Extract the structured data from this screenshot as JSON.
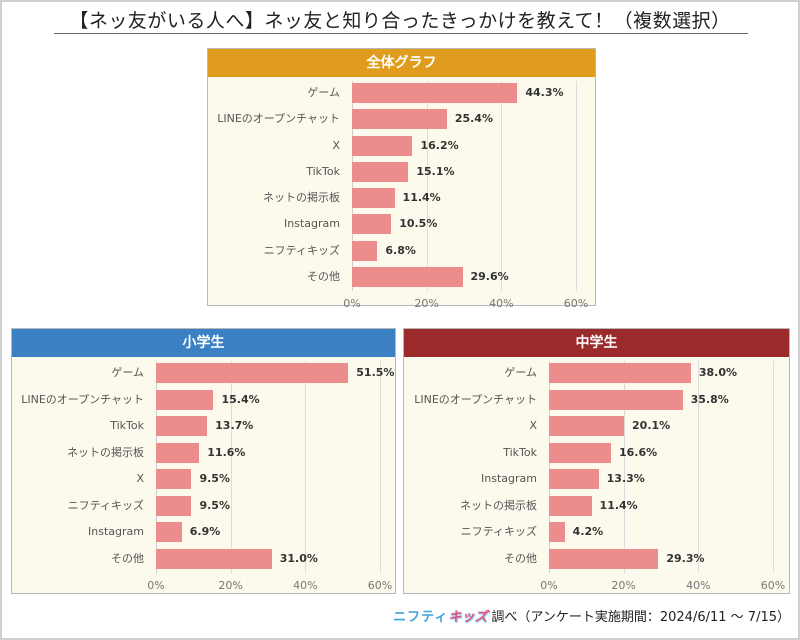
{
  "title": "【ネッ友がいる人へ】ネッ友と知り合ったきっかけを教えて！（複数選択）",
  "colors": {
    "overall_header": "#e09c1c",
    "elementary_header": "#3a80c3",
    "junior_header": "#9b2a2a",
    "bar": "#ec8c8c",
    "panel_bg": "#fcfaec"
  },
  "footer": {
    "logo_part1": "ニフティ",
    "logo_part2": "キッズ",
    "text": "調べ（アンケート実施期間：2024/6/11 ～ 7/15）"
  },
  "chart_data": [
    {
      "type": "bar",
      "orientation": "horizontal",
      "title": "全体グラフ",
      "categories": [
        "ゲーム",
        "LINEのオープンチャット",
        "X",
        "TikTok",
        "ネットの掲示板",
        "Instagram",
        "ニフティキッズ",
        "その他"
      ],
      "values": [
        44.3,
        25.4,
        16.2,
        15.1,
        11.4,
        10.5,
        6.8,
        29.6
      ],
      "value_labels": [
        "44.3%",
        "25.4%",
        "16.2%",
        "15.1%",
        "11.4%",
        "10.5%",
        "6.8%",
        "29.6%"
      ],
      "xlabel": "",
      "ylabel": "",
      "xlim": [
        0,
        60
      ],
      "xticks": [
        "0%",
        "20%",
        "40%",
        "60%"
      ],
      "grid": true
    },
    {
      "type": "bar",
      "orientation": "horizontal",
      "title": "小学生",
      "categories": [
        "ゲーム",
        "LINEのオープンチャット",
        "TikTok",
        "ネットの掲示板",
        "X",
        "ニフティキッズ",
        "Instagram",
        "その他"
      ],
      "values": [
        51.5,
        15.4,
        13.7,
        11.6,
        9.5,
        9.5,
        6.9,
        31.0
      ],
      "value_labels": [
        "51.5%",
        "15.4%",
        "13.7%",
        "11.6%",
        "9.5%",
        "9.5%",
        "6.9%",
        "31.0%"
      ],
      "xlabel": "",
      "ylabel": "",
      "xlim": [
        0,
        60
      ],
      "xticks": [
        "0%",
        "20%",
        "40%",
        "60%"
      ],
      "grid": true
    },
    {
      "type": "bar",
      "orientation": "horizontal",
      "title": "中学生",
      "categories": [
        "ゲーム",
        "LINEのオープンチャット",
        "X",
        "TikTok",
        "Instagram",
        "ネットの掲示板",
        "ニフティキッズ",
        "その他"
      ],
      "values": [
        38.0,
        35.8,
        20.1,
        16.6,
        13.3,
        11.4,
        4.2,
        29.3
      ],
      "value_labels": [
        "38.0%",
        "35.8%",
        "20.1%",
        "16.6%",
        "13.3%",
        "11.4%",
        "4.2%",
        "29.3%"
      ],
      "xlabel": "",
      "ylabel": "",
      "xlim": [
        0,
        60
      ],
      "xticks": [
        "0%",
        "20%",
        "40%",
        "60%"
      ],
      "grid": true
    }
  ]
}
